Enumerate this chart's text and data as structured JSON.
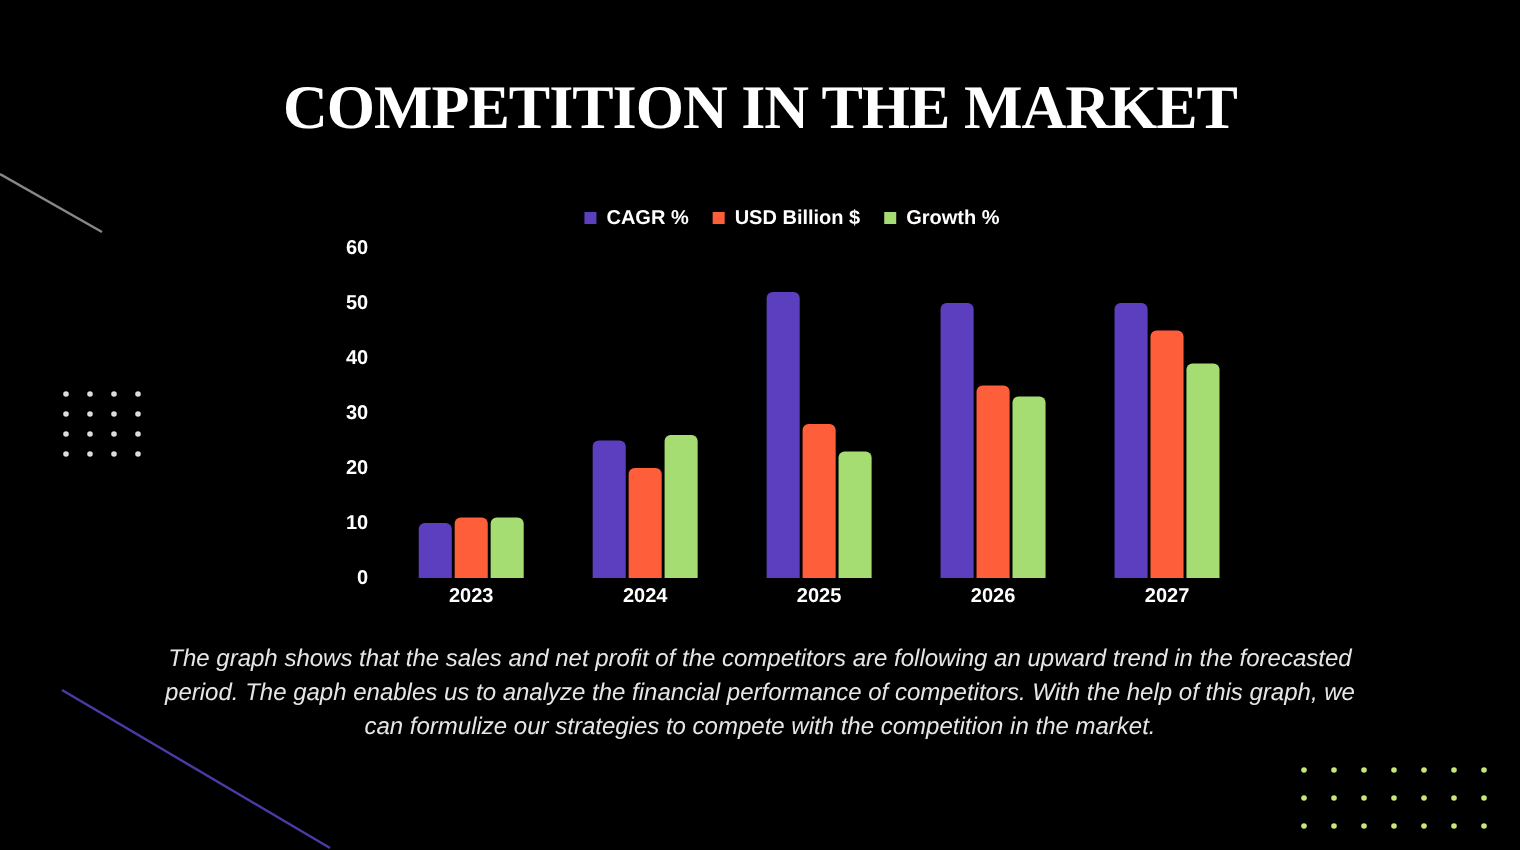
{
  "chart_data": {
    "type": "bar",
    "title": "COMPETITION IN THE MARKET",
    "categories": [
      "2023",
      "2024",
      "2025",
      "2026",
      "2027"
    ],
    "series": [
      {
        "name": "CAGR %",
        "color": "#5b3fbf",
        "values": [
          10,
          25,
          52,
          50,
          50
        ]
      },
      {
        "name": "USD Billion $",
        "color": "#ff5e3a",
        "values": [
          11,
          20,
          28,
          35,
          45
        ]
      },
      {
        "name": "Growth %",
        "color": "#a6dd72",
        "values": [
          11,
          26,
          23,
          33,
          39
        ]
      }
    ],
    "ylim": [
      0,
      60
    ],
    "yticks": [
      0,
      10,
      20,
      30,
      40,
      50,
      60
    ],
    "grid": false,
    "legend": "top",
    "annotations": [
      "The graph shows that the sales and net profit of the competitors are following an upward trend in the forecasted period. The gaph enables us to analyze the financial performance of competitors. With the help of this graph, we can formulize our strategies to compete with the competition in the market."
    ]
  }
}
